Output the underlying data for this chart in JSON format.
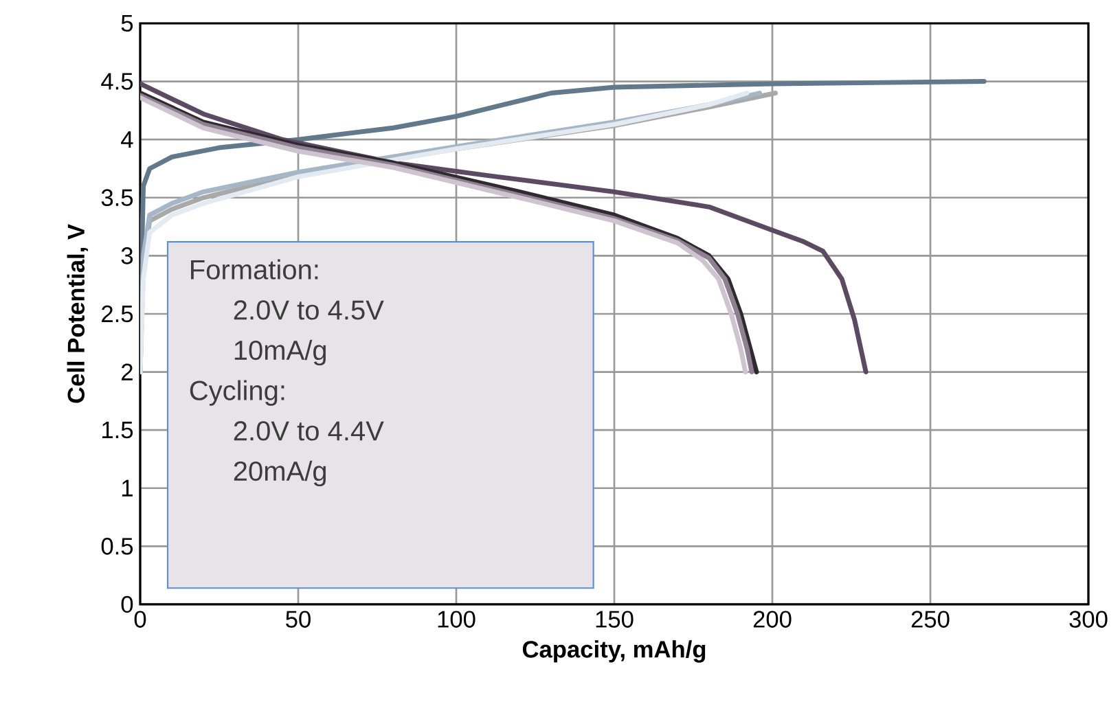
{
  "chart_data": {
    "type": "line",
    "xlabel": "Capacity, mAh/g",
    "ylabel": "Cell Potential, V",
    "xlim": [
      0,
      300
    ],
    "ylim": [
      0,
      5
    ],
    "xticks": [
      0,
      50,
      100,
      150,
      200,
      250,
      300
    ],
    "yticks": [
      0,
      0.5,
      1,
      1.5,
      2,
      2.5,
      3,
      3.5,
      4,
      4.5,
      5
    ],
    "grid": true,
    "annotations": [
      "Formation:",
      "2.0V to 4.5V",
      "10mA/g",
      "Cycling:",
      "2.0V to 4.4V",
      "20mA/g"
    ],
    "series": [
      {
        "color": "#62798c",
        "x": [
          0,
          0.5,
          1,
          3,
          10,
          25,
          50,
          80,
          100,
          115,
          130,
          150,
          200,
          267
        ],
        "values": [
          2.0,
          3.0,
          3.6,
          3.75,
          3.85,
          3.93,
          4.0,
          4.1,
          4.2,
          4.3,
          4.4,
          4.45,
          4.48,
          4.5
        ]
      },
      {
        "color": "#5c4a63",
        "x": [
          0,
          20,
          45,
          80,
          110,
          130,
          150,
          180,
          199,
          210,
          216,
          222,
          226,
          229.6
        ],
        "values": [
          4.48,
          4.22,
          4.0,
          3.8,
          3.69,
          3.62,
          3.55,
          3.42,
          3.23,
          3.12,
          3.04,
          2.8,
          2.45,
          2.0
        ]
      },
      {
        "color": "#a9a9a9",
        "x": [
          0,
          1,
          3,
          10,
          20,
          50,
          100,
          150,
          180,
          201
        ],
        "values": [
          2.0,
          2.9,
          3.3,
          3.4,
          3.5,
          3.7,
          3.92,
          4.12,
          4.28,
          4.4
        ]
      },
      {
        "color": "#a5b6c6",
        "x": [
          0,
          1,
          3,
          10,
          20,
          50,
          100,
          150,
          180,
          196
        ],
        "values": [
          2.0,
          3.0,
          3.35,
          3.45,
          3.55,
          3.72,
          3.94,
          4.15,
          4.3,
          4.4
        ]
      },
      {
        "color": "#e3eaf1",
        "x": [
          0,
          1,
          3,
          10,
          20,
          50,
          100,
          150,
          180,
          192
        ],
        "values": [
          2.0,
          2.8,
          3.2,
          3.35,
          3.45,
          3.68,
          3.92,
          4.13,
          4.3,
          4.4
        ]
      },
      {
        "color": "#2e2a30",
        "x": [
          0,
          20,
          50,
          80,
          120,
          150,
          170,
          180,
          186,
          190,
          193,
          195
        ],
        "values": [
          4.4,
          4.15,
          3.95,
          3.8,
          3.55,
          3.35,
          3.15,
          3.0,
          2.8,
          2.5,
          2.2,
          2.0
        ]
      },
      {
        "color": "#8e7f91",
        "x": [
          0,
          20,
          50,
          80,
          120,
          150,
          170,
          180,
          185,
          189,
          192,
          193.5
        ],
        "values": [
          4.38,
          4.13,
          3.93,
          3.78,
          3.52,
          3.32,
          3.13,
          2.98,
          2.8,
          2.5,
          2.2,
          2.0
        ]
      },
      {
        "color": "#cdc4cf",
        "x": [
          0,
          20,
          50,
          80,
          120,
          150,
          170,
          178,
          183,
          187,
          190,
          191.5
        ],
        "values": [
          4.36,
          4.1,
          3.9,
          3.76,
          3.5,
          3.3,
          3.11,
          2.96,
          2.8,
          2.5,
          2.2,
          2.0
        ]
      }
    ]
  }
}
